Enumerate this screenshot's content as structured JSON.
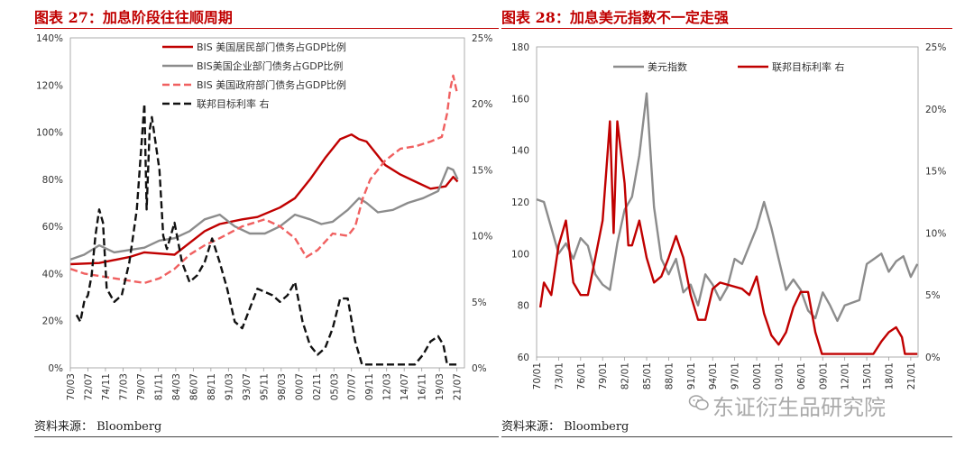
{
  "charts": [
    {
      "title": "图表 27：加息阶段往往顺周期",
      "source": "资料来源：  Bloomberg",
      "colors": {
        "household": "#c00000",
        "corporate": "#8c8c8c",
        "government": "#f06060",
        "fedrate": "#111111"
      }
    },
    {
      "title": "图表 28：加息美元指数不一定走强",
      "source": "资料来源：  Bloomberg",
      "colors": {
        "dxy": "#8c8c8c",
        "fedrate": "#c00000"
      }
    }
  ],
  "watermark": "东证衍生品研究院",
  "chart_data": [
    {
      "type": "line",
      "title": "加息阶段往往顺周期",
      "x_ticks": [
        "70/03",
        "72/07",
        "74/11",
        "77/03",
        "79/07",
        "81/11",
        "84/03",
        "86/07",
        "88/11",
        "91/03",
        "93/07",
        "95/11",
        "98/03",
        "00/07",
        "02/11",
        "05/03",
        "07/07",
        "09/11",
        "12/03",
        "14/07",
        "16/11",
        "19/03",
        "21/07"
      ],
      "x_range": [
        1970.17,
        2022.5
      ],
      "y_left_ticks": [
        "0%",
        "20%",
        "40%",
        "60%",
        "80%",
        "100%",
        "120%",
        "140%"
      ],
      "y_left_range": [
        0,
        140
      ],
      "y_right_ticks": [
        "0%",
        "5%",
        "10%",
        "15%",
        "20%",
        "25%"
      ],
      "y_right_range": [
        0,
        25
      ],
      "series": [
        {
          "name": "BIS 美国居民部门债务占GDP比例",
          "axis": "left",
          "style": "solid",
          "color": "#c00000",
          "points": [
            [
              1970.2,
              44
            ],
            [
              1974,
              44.5
            ],
            [
              1978,
              47
            ],
            [
              1980,
              49
            ],
            [
              1984,
              48
            ],
            [
              1986,
              53
            ],
            [
              1988,
              58
            ],
            [
              1990,
              61
            ],
            [
              1993,
              63
            ],
            [
              1995,
              64
            ],
            [
              1998,
              68
            ],
            [
              2000,
              72
            ],
            [
              2002,
              80
            ],
            [
              2004,
              89
            ],
            [
              2006,
              97
            ],
            [
              2007.5,
              99
            ],
            [
              2008.5,
              97
            ],
            [
              2009.5,
              96
            ],
            [
              2011,
              90
            ],
            [
              2012,
              86
            ],
            [
              2014,
              82
            ],
            [
              2016,
              79
            ],
            [
              2018,
              76
            ],
            [
              2020,
              77
            ],
            [
              2021,
              81
            ],
            [
              2021.6,
              79
            ]
          ]
        },
        {
          "name": "BIS美国企业部门债务占GDP比例",
          "axis": "left",
          "style": "solid",
          "color": "#8c8c8c",
          "points": [
            [
              1970.2,
              46
            ],
            [
              1972,
              48
            ],
            [
              1974,
              52
            ],
            [
              1976,
              49
            ],
            [
              1978,
              50
            ],
            [
              1980,
              51
            ],
            [
              1982,
              54
            ],
            [
              1984,
              55
            ],
            [
              1986,
              58
            ],
            [
              1988,
              63
            ],
            [
              1990,
              65
            ],
            [
              1992,
              60
            ],
            [
              1994,
              57
            ],
            [
              1996,
              57
            ],
            [
              1998,
              60
            ],
            [
              2000,
              65
            ],
            [
              2002,
              63
            ],
            [
              2003.5,
              61
            ],
            [
              2005,
              62
            ],
            [
              2007,
              67
            ],
            [
              2008.5,
              72
            ],
            [
              2009.5,
              70
            ],
            [
              2011,
              66
            ],
            [
              2013,
              67
            ],
            [
              2015,
              70
            ],
            [
              2017,
              72
            ],
            [
              2019,
              75
            ],
            [
              2020.3,
              85
            ],
            [
              2021,
              84
            ],
            [
              2021.6,
              80
            ]
          ]
        },
        {
          "name": "BIS 美国政府部门债务占GDP比例",
          "axis": "left",
          "style": "dashed",
          "color": "#f06060",
          "points": [
            [
              1970.2,
              42
            ],
            [
              1972,
              40
            ],
            [
              1974,
              39
            ],
            [
              1976,
              38
            ],
            [
              1978,
              37
            ],
            [
              1980,
              36
            ],
            [
              1982,
              38
            ],
            [
              1984,
              42
            ],
            [
              1986,
              48
            ],
            [
              1988,
              52
            ],
            [
              1990,
              55
            ],
            [
              1993,
              60
            ],
            [
              1996,
              63
            ],
            [
              1998,
              60
            ],
            [
              2000,
              55
            ],
            [
              2001.5,
              47
            ],
            [
              2003,
              50
            ],
            [
              2005,
              57
            ],
            [
              2007,
              56
            ],
            [
              2008,
              60
            ],
            [
              2009,
              72
            ],
            [
              2010,
              80
            ],
            [
              2012,
              88
            ],
            [
              2014,
              93
            ],
            [
              2016,
              94
            ],
            [
              2018,
              96
            ],
            [
              2019.5,
              98
            ],
            [
              2020.2,
              108
            ],
            [
              2020.6,
              118
            ],
            [
              2021,
              124
            ],
            [
              2021.5,
              117
            ]
          ]
        },
        {
          "name": "联邦目标利率 右",
          "axis": "right",
          "style": "dashed",
          "color": "#111111",
          "points": [
            [
              1971,
              4
            ],
            [
              1971.5,
              3.5
            ],
            [
              1972,
              5
            ],
            [
              1972.5,
              5.5
            ],
            [
              1973,
              7
            ],
            [
              1973.5,
              10
            ],
            [
              1974,
              12
            ],
            [
              1974.5,
              11
            ],
            [
              1975,
              6
            ],
            [
              1975.5,
              5.5
            ],
            [
              1976,
              5
            ],
            [
              1977,
              5.5
            ],
            [
              1978,
              8
            ],
            [
              1978.5,
              10
            ],
            [
              1979,
              12
            ],
            [
              1979.5,
              16
            ],
            [
              1980,
              20
            ],
            [
              1980.3,
              12
            ],
            [
              1980.7,
              18
            ],
            [
              1981,
              19
            ],
            [
              1981.5,
              17
            ],
            [
              1982,
              15
            ],
            [
              1982.5,
              10
            ],
            [
              1983,
              9
            ],
            [
              1984,
              11
            ],
            [
              1985,
              8
            ],
            [
              1986,
              6.5
            ],
            [
              1987,
              7
            ],
            [
              1988,
              8
            ],
            [
              1989,
              9.8
            ],
            [
              1990,
              8
            ],
            [
              1991,
              6
            ],
            [
              1992,
              3.5
            ],
            [
              1993,
              3
            ],
            [
              1994,
              4.5
            ],
            [
              1995,
              6
            ],
            [
              1997,
              5.5
            ],
            [
              1998,
              5
            ],
            [
              1999,
              5.5
            ],
            [
              2000,
              6.5
            ],
            [
              2001,
              3.5
            ],
            [
              2002,
              1.7
            ],
            [
              2003,
              1
            ],
            [
              2004,
              1.5
            ],
            [
              2005,
              3
            ],
            [
              2006,
              5.25
            ],
            [
              2007,
              5.25
            ],
            [
              2008,
              2
            ],
            [
              2008.9,
              0.25
            ],
            [
              2015.9,
              0.25
            ],
            [
              2017,
              1
            ],
            [
              2018,
              2
            ],
            [
              2019,
              2.4
            ],
            [
              2019.7,
              1.75
            ],
            [
              2020.2,
              0.25
            ],
            [
              2021.6,
              0.25
            ]
          ]
        }
      ]
    },
    {
      "type": "line",
      "title": "加息美元指数不一定走强",
      "x_ticks": [
        "70/01",
        "73/01",
        "76/01",
        "79/01",
        "82/01",
        "85/01",
        "88/01",
        "91/01",
        "94/01",
        "97/01",
        "00/01",
        "03/01",
        "06/01",
        "09/01",
        "12/01",
        "15/01",
        "18/01",
        "21/01"
      ],
      "x_range": [
        1970.0,
        2022.0
      ],
      "y_left_ticks": [
        "60",
        "80",
        "100",
        "120",
        "140",
        "160",
        "180"
      ],
      "y_left_range": [
        60,
        180
      ],
      "y_right_ticks": [
        "0%",
        "5%",
        "10%",
        "15%",
        "20%",
        "25%"
      ],
      "y_right_range": [
        0,
        25
      ],
      "series": [
        {
          "name": "美元指数",
          "axis": "left",
          "style": "solid",
          "color": "#8c8c8c",
          "points": [
            [
              1970,
              121
            ],
            [
              1971,
              120
            ],
            [
              1972,
              110
            ],
            [
              1973,
              100
            ],
            [
              1974,
              104
            ],
            [
              1975,
              98
            ],
            [
              1976,
              106
            ],
            [
              1977,
              103
            ],
            [
              1978,
              92
            ],
            [
              1979,
              88
            ],
            [
              1980,
              86
            ],
            [
              1981,
              104
            ],
            [
              1982,
              117
            ],
            [
              1983,
              122
            ],
            [
              1984,
              138
            ],
            [
              1985,
              162
            ],
            [
              1986,
              118
            ],
            [
              1987,
              98
            ],
            [
              1988,
              92
            ],
            [
              1989,
              98
            ],
            [
              1990,
              85
            ],
            [
              1991,
              88
            ],
            [
              1992,
              80
            ],
            [
              1993,
              92
            ],
            [
              1994,
              88
            ],
            [
              1995,
              82
            ],
            [
              1996,
              87
            ],
            [
              1997,
              98
            ],
            [
              1998,
              96
            ],
            [
              1999,
              103
            ],
            [
              2000,
              110
            ],
            [
              2001,
              120
            ],
            [
              2002,
              110
            ],
            [
              2003,
              98
            ],
            [
              2004,
              86
            ],
            [
              2005,
              90
            ],
            [
              2006,
              86
            ],
            [
              2007,
              78
            ],
            [
              2008,
              75
            ],
            [
              2009,
              85
            ],
            [
              2010,
              80
            ],
            [
              2011,
              74
            ],
            [
              2012,
              80
            ],
            [
              2013,
              81
            ],
            [
              2014,
              82
            ],
            [
              2015,
              96
            ],
            [
              2016,
              98
            ],
            [
              2017,
              100
            ],
            [
              2018,
              93
            ],
            [
              2019,
              97
            ],
            [
              2020,
              99
            ],
            [
              2021,
              91
            ],
            [
              2021.9,
              96
            ]
          ]
        },
        {
          "name": "联邦目标利率 右",
          "axis": "right",
          "style": "solid",
          "color": "#c00000",
          "points": [
            [
              1970.5,
              4
            ],
            [
              1971,
              6
            ],
            [
              1972,
              5
            ],
            [
              1973,
              9
            ],
            [
              1974,
              11
            ],
            [
              1975,
              6
            ],
            [
              1976,
              5
            ],
            [
              1977,
              5
            ],
            [
              1978,
              8
            ],
            [
              1979,
              11
            ],
            [
              1980,
              19
            ],
            [
              1980.5,
              10
            ],
            [
              1981,
              19
            ],
            [
              1982,
              14
            ],
            [
              1982.5,
              9
            ],
            [
              1983,
              9
            ],
            [
              1984,
              11
            ],
            [
              1985,
              8
            ],
            [
              1986,
              6
            ],
            [
              1987,
              6.5
            ],
            [
              1988,
              8
            ],
            [
              1989,
              9.75
            ],
            [
              1990,
              8
            ],
            [
              1991,
              5
            ],
            [
              1992,
              3
            ],
            [
              1993,
              3
            ],
            [
              1994,
              5.5
            ],
            [
              1995,
              6
            ],
            [
              1998,
              5.5
            ],
            [
              1999,
              5
            ],
            [
              2000,
              6.5
            ],
            [
              2001,
              3.5
            ],
            [
              2002,
              1.75
            ],
            [
              2003,
              1
            ],
            [
              2004,
              2
            ],
            [
              2005,
              4
            ],
            [
              2006,
              5.25
            ],
            [
              2007,
              5.25
            ],
            [
              2008,
              2
            ],
            [
              2008.9,
              0.25
            ],
            [
              2015.9,
              0.25
            ],
            [
              2017,
              1.25
            ],
            [
              2018,
              2
            ],
            [
              2019,
              2.4
            ],
            [
              2019.8,
              1.6
            ],
            [
              2020.2,
              0.25
            ],
            [
              2021.9,
              0.25
            ]
          ]
        }
      ]
    }
  ]
}
